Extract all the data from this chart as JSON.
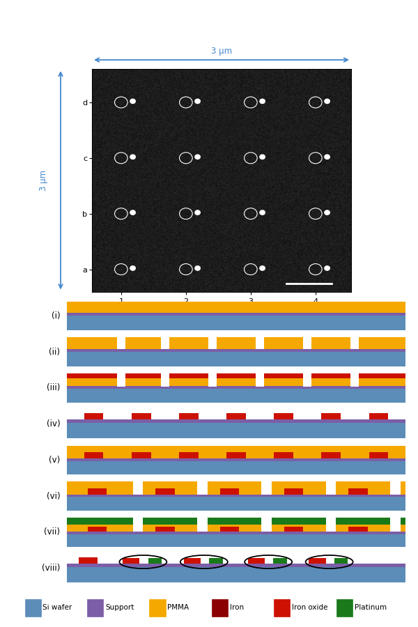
{
  "colors": {
    "si_wafer": "#5B8DB8",
    "support": "#7B5EA7",
    "pmma": "#F5A800",
    "iron": "#8B0000",
    "iron_oxide": "#CC1100",
    "platinum": "#1A7A1A",
    "background": "#ffffff",
    "arrow_color": "#4488CC",
    "white": "#ffffff",
    "black": "#000000",
    "sem_bg": "#282828"
  },
  "legend_labels": [
    "Si wafer",
    "Support",
    "PMMA",
    "Iron",
    "Iron oxide",
    "Platinum"
  ],
  "legend_colors": [
    "#5B8DB8",
    "#7B5EA7",
    "#F5A800",
    "#8B0000",
    "#CC1100",
    "#1A7A1A"
  ],
  "step_labels": [
    "(i)",
    "(ii)",
    "(iii)",
    "(iv)",
    "(v)",
    "(vi)",
    "(vii)",
    "(viii)"
  ],
  "top_panel": {
    "xlabel_3um": "3 μm",
    "ylabel_3um": "3 μm"
  }
}
